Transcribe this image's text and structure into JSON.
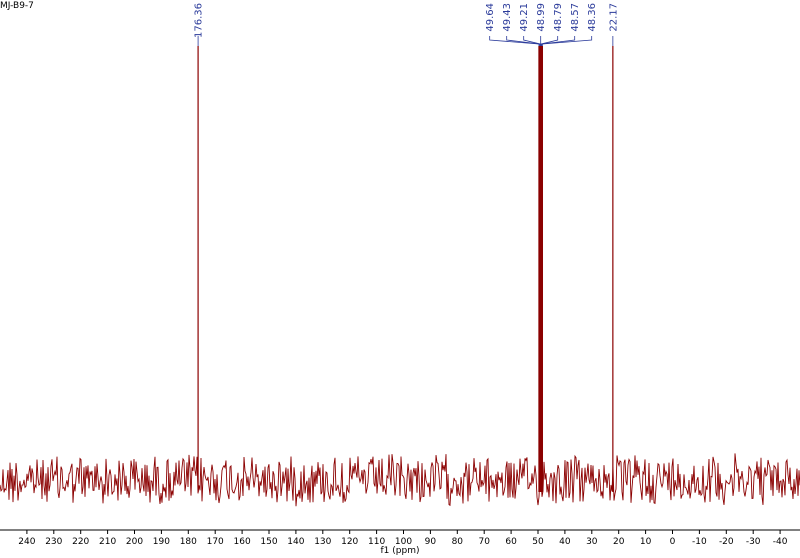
{
  "chart_data": {
    "type": "nmr",
    "title": "MJ-B9-7",
    "x_label": "f1 (ppm)",
    "xlim": [
      250,
      -47.4
    ],
    "xticks": [
      240,
      230,
      220,
      210,
      200,
      190,
      180,
      170,
      160,
      150,
      140,
      130,
      120,
      110,
      100,
      90,
      80,
      70,
      60,
      50,
      40,
      30,
      20,
      10,
      0,
      -10,
      -20,
      -30,
      -40
    ],
    "peaks": [
      176.36,
      49.64,
      49.43,
      49.21,
      48.99,
      48.79,
      48.57,
      48.36,
      22.17
    ],
    "color": "#8b0000",
    "label_color": "#2a3a9a"
  }
}
